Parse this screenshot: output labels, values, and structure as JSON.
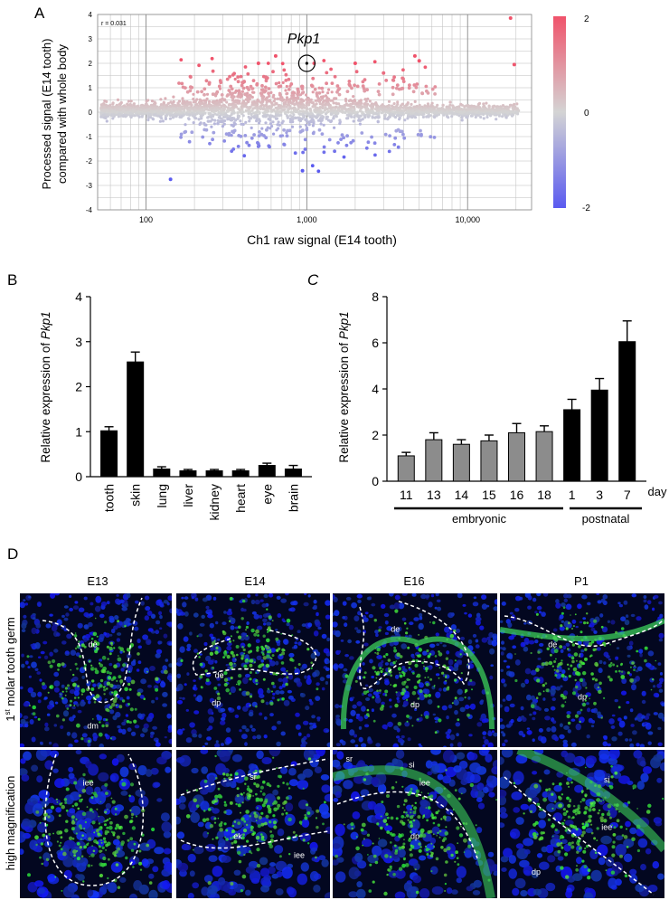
{
  "panels": {
    "A": {
      "label": "A",
      "ylabel_line1": "Processed signal (E14 tooth)",
      "ylabel_line2": "compared with whole body",
      "xlabel": "Ch1 raw signal (E14 tooth)",
      "annotation": "Pkp1",
      "corner_note": "r = 0.031",
      "yticks": [
        "4",
        "3",
        "2",
        "1",
        "0",
        "-1",
        "-2",
        "-3",
        "-4"
      ],
      "xticks": [
        "100",
        "1,000",
        "10,000"
      ],
      "colorbar_ticks": [
        "2",
        "0",
        "-2"
      ]
    },
    "B": {
      "label": "B",
      "ylabel_prefix": "Relative expression of ",
      "ylabel_gene": "Pkp1",
      "yticks": [
        "0",
        "1",
        "2",
        "3",
        "4"
      ]
    },
    "C": {
      "label": "C",
      "ylabel_prefix": "Relative expression of ",
      "ylabel_gene": "Pkp1",
      "yticks": [
        "0",
        "2",
        "4",
        "6",
        "8"
      ],
      "day_label": "day",
      "group1": "embryonic",
      "group2": "postnatal"
    },
    "D": {
      "label": "D",
      "columns": [
        "E13",
        "E14",
        "E16",
        "P1"
      ],
      "row1_label_pre": "1",
      "row1_label_sup": "st",
      "row1_label_post": " molar tooth germ",
      "row2_label": "high magnification",
      "row1_tissue_labels": [
        [
          "de",
          "dm"
        ],
        [
          "de",
          "dp"
        ],
        [
          "de",
          "dp"
        ],
        [
          "de",
          "dp"
        ]
      ],
      "row2_tissue_labels": [
        [
          "iee"
        ],
        [
          "sr",
          "ek",
          "iee"
        ],
        [
          "sr",
          "si",
          "iee",
          "dp"
        ],
        [
          "si",
          "iee",
          "dp"
        ]
      ]
    }
  },
  "chart_data": [
    {
      "type": "scatter",
      "panel": "A",
      "x_scale": "log",
      "xlim": [
        50,
        25000
      ],
      "ylim": [
        -4,
        4
      ],
      "colorbar_range": [
        -2,
        2
      ],
      "highlight": {
        "name": "Pkp1",
        "x": 1000,
        "y": 2.0
      },
      "notable_points": [
        {
          "x": 18500,
          "y": 3.85
        },
        {
          "x": 19500,
          "y": 1.95
        },
        {
          "x": 4700,
          "y": 2.3
        },
        {
          "x": 5000,
          "y": 2.1
        },
        {
          "x": 142,
          "y": -2.75
        },
        {
          "x": 940,
          "y": -2.4
        },
        {
          "x": 3000,
          "y": 1.6
        },
        {
          "x": 2000,
          "y": 2.0
        },
        {
          "x": 640,
          "y": 2.3
        },
        {
          "x": 500,
          "y": 2.0
        }
      ]
    },
    {
      "type": "bar",
      "panel": "B",
      "categories": [
        "tooth",
        "skin",
        "lung",
        "liver",
        "kidney",
        "heart",
        "eye",
        "brain"
      ],
      "values": [
        1.02,
        2.55,
        0.17,
        0.13,
        0.13,
        0.13,
        0.25,
        0.17
      ],
      "errors": [
        0.09,
        0.22,
        0.05,
        0.03,
        0.03,
        0.03,
        0.05,
        0.08
      ],
      "ylim": [
        0,
        4
      ]
    },
    {
      "type": "bar",
      "panel": "C",
      "categories": [
        "11",
        "13",
        "14",
        "15",
        "16",
        "18",
        "1",
        "3",
        "7"
      ],
      "values": [
        1.1,
        1.8,
        1.6,
        1.75,
        2.1,
        2.15,
        3.1,
        3.95,
        6.05
      ],
      "errors": [
        0.15,
        0.3,
        0.2,
        0.25,
        0.4,
        0.25,
        0.45,
        0.5,
        0.9
      ],
      "groups": [
        "embryonic",
        "embryonic",
        "embryonic",
        "embryonic",
        "embryonic",
        "embryonic",
        "postnatal",
        "postnatal",
        "postnatal"
      ],
      "ylim": [
        0,
        8
      ]
    }
  ]
}
